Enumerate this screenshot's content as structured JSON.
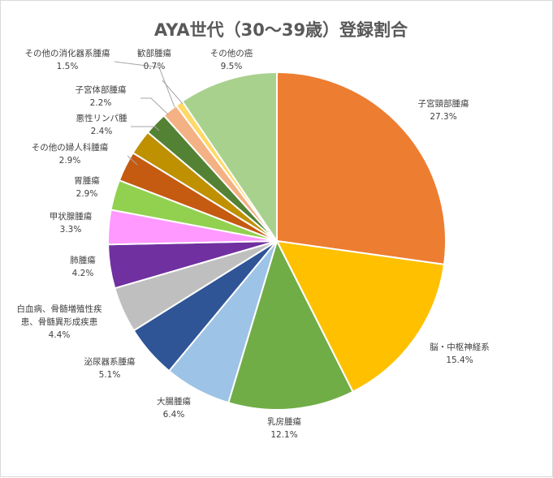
{
  "chart_data": {
    "type": "pie",
    "title": "AYA世代（30～39歳）登録割合",
    "unit": "%",
    "slices": [
      {
        "label": [
          "子宮頸部腫瘍"
        ],
        "value": 27.3,
        "value_label": "27.3%",
        "color": "#ED7D31"
      },
      {
        "label": [
          "脳・中枢神経系"
        ],
        "value": 15.4,
        "value_label": "15.4%",
        "color": "#FFC000"
      },
      {
        "label": [
          "乳房腫瘍"
        ],
        "value": 12.1,
        "value_label": "12.1%",
        "color": "#70AD47"
      },
      {
        "label": [
          "大腸腫瘍"
        ],
        "value": 6.4,
        "value_label": "6.4%",
        "color": "#9DC3E6"
      },
      {
        "label": [
          "泌尿器系腫瘍"
        ],
        "value": 5.1,
        "value_label": "5.1%",
        "color": "#2F5597"
      },
      {
        "label": [
          "白血病、骨髄増殖性疾",
          "患、骨髄異形成疾患"
        ],
        "value": 4.4,
        "value_label": "4.4%",
        "color": "#BFBFBF"
      },
      {
        "label": [
          "肺腫瘍"
        ],
        "value": 4.2,
        "value_label": "4.2%",
        "color": "#7030A0"
      },
      {
        "label": [
          "甲状腺腫瘍"
        ],
        "value": 3.3,
        "value_label": "3.3%",
        "color": "#FF99FF"
      },
      {
        "label": [
          "胃腫瘍"
        ],
        "value": 2.9,
        "value_label": "2.9%",
        "color": "#92D050"
      },
      {
        "label": [
          "その他の婦人科腫瘍"
        ],
        "value": 2.9,
        "value_label": "2.9%",
        "color": "#C55A11"
      },
      {
        "label": [
          "悪性リンパ腫"
        ],
        "value": 2.4,
        "value_label": "2.4%",
        "color": "#BF9000"
      },
      {
        "label": [
          "子宮体部腫瘍"
        ],
        "value": 2.2,
        "value_label": "2.2%",
        "color": "#548235"
      },
      {
        "label": [
          "その他の消化器系腫瘍"
        ],
        "value": 1.5,
        "value_label": "1.5%",
        "color": "#F4B183"
      },
      {
        "label": [
          "歓部腫瘍"
        ],
        "value": 0.7,
        "value_label": "0.7%",
        "color": "#FFD966"
      },
      {
        "label": [
          "その他の癌"
        ],
        "value": 9.5,
        "value_label": "9.5%",
        "color": "#A9D18E"
      }
    ]
  }
}
